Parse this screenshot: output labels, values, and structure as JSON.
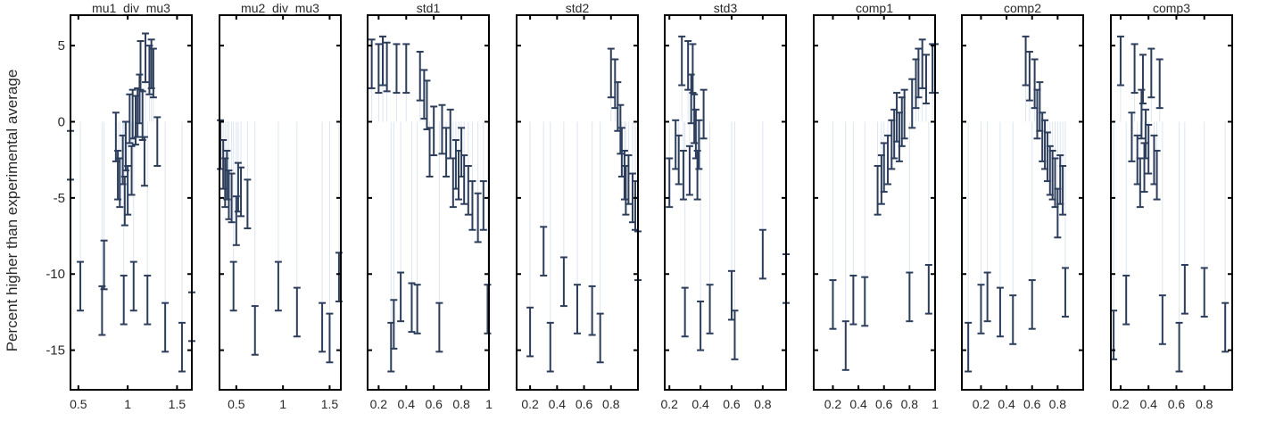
{
  "chart_data": {
    "type": "scatter",
    "ylabel": "Percent higher than experimental average",
    "ylim": [
      -17.6,
      7
    ],
    "yticks": [
      5,
      0,
      -5,
      -10,
      -15
    ],
    "grid": false,
    "colors": {
      "marker": "#2c3e5c",
      "grid": "#dde5f0",
      "axis": "#000000"
    },
    "panels": [
      {
        "title": "mu1_div_mu3",
        "xlim": [
          0.42,
          1.65
        ],
        "xticks": [
          0.5,
          1,
          1.5
        ],
        "points": [
          [
            0.42,
            -2.2
          ],
          [
            0.52,
            -10.8
          ],
          [
            0.74,
            -12.4
          ],
          [
            0.76,
            -9.4
          ],
          [
            0.88,
            -1
          ],
          [
            0.9,
            -3.5
          ],
          [
            0.92,
            -4
          ],
          [
            0.95,
            -2.5
          ],
          [
            0.96,
            -11.7
          ],
          [
            0.97,
            -5.2
          ],
          [
            0.98,
            -1.6
          ],
          [
            1,
            -4.5
          ],
          [
            1.02,
            0.2
          ],
          [
            1.04,
            -3.2
          ],
          [
            1.05,
            0.5
          ],
          [
            1.06,
            -10.8
          ],
          [
            1.08,
            0.1
          ],
          [
            1.1,
            0.6
          ],
          [
            1.12,
            1.5
          ],
          [
            1.13,
            3.7
          ],
          [
            1.15,
            0.4
          ],
          [
            1.17,
            -2.6
          ],
          [
            1.18,
            4.2
          ],
          [
            1.2,
            -11.7
          ],
          [
            1.22,
            3.4
          ],
          [
            1.24,
            3.8
          ],
          [
            1.26,
            3.2
          ],
          [
            1.3,
            -1.3
          ],
          [
            1.38,
            -13.5
          ],
          [
            1.55,
            -14.8
          ],
          [
            1.65,
            -12.8
          ]
        ]
      },
      {
        "title": "mu2_div_mu3",
        "xlim": [
          0.32,
          1.62
        ],
        "xticks": [
          0.5,
          1,
          1.5
        ],
        "points": [
          [
            0.33,
            -1.5
          ],
          [
            0.36,
            -2.8
          ],
          [
            0.38,
            -4
          ],
          [
            0.4,
            -3.5
          ],
          [
            0.42,
            -4.8
          ],
          [
            0.45,
            -5
          ],
          [
            0.47,
            -10.8
          ],
          [
            0.5,
            -6.5
          ],
          [
            0.52,
            -4.3
          ],
          [
            0.55,
            -4.6
          ],
          [
            0.62,
            -5.4
          ],
          [
            0.7,
            -13.7
          ],
          [
            0.95,
            -10.8
          ],
          [
            1.15,
            -12.5
          ],
          [
            1.42,
            -13.5
          ],
          [
            1.5,
            -14.2
          ],
          [
            1.6,
            -10.2
          ]
        ]
      },
      {
        "title": "std1",
        "xlim": [
          0.12,
          1.0
        ],
        "xticks": [
          0.2,
          0.4,
          0.6,
          0.8,
          1
        ],
        "points": [
          [
            0.15,
            3.8
          ],
          [
            0.2,
            3.5
          ],
          [
            0.23,
            4
          ],
          [
            0.26,
            3.6
          ],
          [
            0.29,
            -14.8
          ],
          [
            0.31,
            -13.3
          ],
          [
            0.33,
            3.5
          ],
          [
            0.36,
            -11.5
          ],
          [
            0.4,
            3.5
          ],
          [
            0.44,
            -12.2
          ],
          [
            0.48,
            -12.3
          ],
          [
            0.5,
            3
          ],
          [
            0.53,
            1.8
          ],
          [
            0.55,
            1.1
          ],
          [
            0.57,
            -2
          ],
          [
            0.6,
            -0.6
          ],
          [
            0.64,
            -13.5
          ],
          [
            0.66,
            -0.5
          ],
          [
            0.69,
            -2
          ],
          [
            0.72,
            -0.8
          ],
          [
            0.74,
            -4
          ],
          [
            0.76,
            -2.8
          ],
          [
            0.78,
            -3.5
          ],
          [
            0.8,
            -2
          ],
          [
            0.82,
            -3.8
          ],
          [
            0.85,
            -4.5
          ],
          [
            0.88,
            -5.5
          ],
          [
            0.92,
            -6.3
          ],
          [
            0.96,
            -5.5
          ],
          [
            0.99,
            -12.3
          ]
        ]
      },
      {
        "title": "std2",
        "xlim": [
          0.1,
          1.0
        ],
        "xticks": [
          0.2,
          0.4,
          0.6,
          0.8
        ],
        "points": [
          [
            0.2,
            -13.8
          ],
          [
            0.3,
            -8.5
          ],
          [
            0.35,
            -14.8
          ],
          [
            0.45,
            -10.5
          ],
          [
            0.55,
            -12.3
          ],
          [
            0.66,
            -12.4
          ],
          [
            0.72,
            -14.2
          ],
          [
            0.8,
            3.2
          ],
          [
            0.83,
            2.5
          ],
          [
            0.85,
            1
          ],
          [
            0.87,
            -0.5
          ],
          [
            0.88,
            -2
          ],
          [
            0.9,
            -3.5
          ],
          [
            0.91,
            -4.5
          ],
          [
            0.93,
            -3.8
          ],
          [
            0.96,
            -5
          ],
          [
            0.98,
            -5.5
          ],
          [
            1,
            -8.8
          ]
        ]
      },
      {
        "title": "std3",
        "xlim": [
          0.17,
          0.95
        ],
        "xticks": [
          0.2,
          0.4,
          0.6,
          0.8
        ],
        "points": [
          [
            0.2,
            -4
          ],
          [
            0.24,
            -1.5
          ],
          [
            0.26,
            -2.5
          ],
          [
            0.28,
            4
          ],
          [
            0.29,
            -3.5
          ],
          [
            0.3,
            -12.5
          ],
          [
            0.32,
            3.7
          ],
          [
            0.33,
            -3.2
          ],
          [
            0.34,
            1.5
          ],
          [
            0.35,
            3.5
          ],
          [
            0.36,
            0.2
          ],
          [
            0.37,
            -0.8
          ],
          [
            0.38,
            -3.5
          ],
          [
            0.39,
            -1.5
          ],
          [
            0.4,
            -13.4
          ],
          [
            0.42,
            0.5
          ],
          [
            0.46,
            -12.3
          ],
          [
            0.6,
            -11.4
          ],
          [
            0.62,
            -14
          ],
          [
            0.8,
            -8.7
          ],
          [
            0.95,
            -10.3
          ]
        ]
      },
      {
        "title": "comp1",
        "xlim": [
          0.05,
          1.0
        ],
        "xticks": [
          0.2,
          0.4,
          0.6,
          0.8,
          1
        ],
        "points": [
          [
            0.2,
            -12
          ],
          [
            0.3,
            -14.7
          ],
          [
            0.36,
            -11.7
          ],
          [
            0.45,
            -11.8
          ],
          [
            0.55,
            -4.5
          ],
          [
            0.58,
            -3.8
          ],
          [
            0.6,
            -3
          ],
          [
            0.63,
            -2.5
          ],
          [
            0.66,
            -1.5
          ],
          [
            0.68,
            -0.8
          ],
          [
            0.7,
            0.3
          ],
          [
            0.72,
            -1
          ],
          [
            0.74,
            0
          ],
          [
            0.76,
            0.5
          ],
          [
            0.8,
            -11.5
          ],
          [
            0.82,
            1.2
          ],
          [
            0.85,
            2.5
          ],
          [
            0.87,
            3.2
          ],
          [
            0.9,
            3.8
          ],
          [
            0.93,
            2.8
          ],
          [
            0.95,
            -11
          ],
          [
            0.98,
            3.5
          ],
          [
            1,
            3.5
          ]
        ]
      },
      {
        "title": "comp2",
        "xlim": [
          0.05,
          1.0
        ],
        "xticks": [
          0.2,
          0.4,
          0.6,
          0.8
        ],
        "points": [
          [
            0.1,
            -14.8
          ],
          [
            0.2,
            -12.3
          ],
          [
            0.25,
            -11.5
          ],
          [
            0.35,
            -12.5
          ],
          [
            0.45,
            -13
          ],
          [
            0.55,
            4
          ],
          [
            0.58,
            3
          ],
          [
            0.6,
            -12
          ],
          [
            0.62,
            2.5
          ],
          [
            0.64,
            0.5
          ],
          [
            0.66,
            1
          ],
          [
            0.68,
            -1
          ],
          [
            0.7,
            -1.5
          ],
          [
            0.72,
            -2.3
          ],
          [
            0.74,
            -3.2
          ],
          [
            0.76,
            -3.5
          ],
          [
            0.78,
            -4
          ],
          [
            0.8,
            -6
          ],
          [
            0.82,
            -3.8
          ],
          [
            0.84,
            -4.5
          ],
          [
            0.86,
            -11.2
          ]
        ]
      },
      {
        "title": "comp3",
        "xlim": [
          0.13,
          1.0
        ],
        "xticks": [
          0.2,
          0.4,
          0.6,
          0.8
        ],
        "points": [
          [
            0.15,
            -14
          ],
          [
            0.2,
            4
          ],
          [
            0.24,
            -11.7
          ],
          [
            0.28,
            -1
          ],
          [
            0.3,
            3.5
          ],
          [
            0.32,
            -2.5
          ],
          [
            0.34,
            -4
          ],
          [
            0.35,
            0.5
          ],
          [
            0.36,
            2.8
          ],
          [
            0.37,
            -3
          ],
          [
            0.38,
            -0.8
          ],
          [
            0.4,
            -1.8
          ],
          [
            0.42,
            3.2
          ],
          [
            0.44,
            -2.5
          ],
          [
            0.46,
            -3.5
          ],
          [
            0.48,
            2.5
          ],
          [
            0.5,
            -13
          ],
          [
            0.62,
            -14.8
          ],
          [
            0.66,
            -11
          ],
          [
            0.8,
            -11.2
          ],
          [
            0.95,
            -13.5
          ]
        ]
      }
    ]
  }
}
